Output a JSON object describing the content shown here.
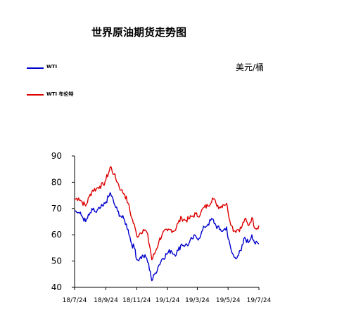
{
  "chart_data": {
    "type": "line",
    "title": "世界原油期货走势图",
    "unit_label": "美元/桶",
    "xlabel": "",
    "ylabel": "",
    "ylim": [
      40,
      90
    ],
    "yticks": [
      40,
      50,
      60,
      70,
      80,
      90
    ],
    "x_tick_labels": [
      "18/7/24",
      "18/9/24",
      "18/11/24",
      "19/1/24",
      "19/3/24",
      "19/5/24",
      "19/7/24"
    ],
    "x_tick_dates": [
      "2018-07-24",
      "2018-09-24",
      "2018-11-24",
      "2019-01-24",
      "2019-03-24",
      "2019-05-24",
      "2019-07-24"
    ],
    "legend_position": "top-left",
    "grid": false,
    "series": [
      {
        "name": "WTI",
        "color": "#0000cc",
        "points": [
          [
            "2018-07-24",
            69.0
          ],
          [
            "2018-08-01",
            68.5
          ],
          [
            "2018-08-08",
            67.0
          ],
          [
            "2018-08-15",
            65.0
          ],
          [
            "2018-08-22",
            67.5
          ],
          [
            "2018-08-29",
            69.5
          ],
          [
            "2018-09-05",
            68.5
          ],
          [
            "2018-09-12",
            70.0
          ],
          [
            "2018-09-19",
            71.0
          ],
          [
            "2018-09-24",
            72.5
          ],
          [
            "2018-10-01",
            75.0
          ],
          [
            "2018-10-03",
            76.0
          ],
          [
            "2018-10-10",
            72.0
          ],
          [
            "2018-10-17",
            69.0
          ],
          [
            "2018-10-24",
            67.0
          ],
          [
            "2018-10-31",
            65.5
          ],
          [
            "2018-11-07",
            62.0
          ],
          [
            "2018-11-14",
            56.5
          ],
          [
            "2018-11-21",
            54.5
          ],
          [
            "2018-11-24",
            50.5
          ],
          [
            "2018-11-30",
            51.0
          ],
          [
            "2018-12-07",
            52.0
          ],
          [
            "2018-12-14",
            51.0
          ],
          [
            "2018-12-21",
            46.0
          ],
          [
            "2018-12-24",
            42.5
          ],
          [
            "2018-12-31",
            45.5
          ],
          [
            "2019-01-07",
            48.5
          ],
          [
            "2019-01-14",
            51.0
          ],
          [
            "2019-01-24",
            53.0
          ],
          [
            "2019-01-31",
            54.0
          ],
          [
            "2019-02-07",
            52.5
          ],
          [
            "2019-02-14",
            54.0
          ],
          [
            "2019-02-21",
            56.5
          ],
          [
            "2019-02-28",
            56.0
          ],
          [
            "2019-03-07",
            56.5
          ],
          [
            "2019-03-14",
            58.5
          ],
          [
            "2019-03-21",
            59.5
          ],
          [
            "2019-03-24",
            58.5
          ],
          [
            "2019-03-31",
            60.0
          ],
          [
            "2019-04-07",
            63.0
          ],
          [
            "2019-04-14",
            64.0
          ],
          [
            "2019-04-23",
            66.0
          ],
          [
            "2019-04-30",
            63.5
          ],
          [
            "2019-05-07",
            62.0
          ],
          [
            "2019-05-14",
            61.5
          ],
          [
            "2019-05-21",
            63.0
          ],
          [
            "2019-05-24",
            58.5
          ],
          [
            "2019-05-31",
            53.5
          ],
          [
            "2019-06-05",
            51.5
          ],
          [
            "2019-06-12",
            52.0
          ],
          [
            "2019-06-19",
            54.0
          ],
          [
            "2019-06-26",
            59.0
          ],
          [
            "2019-07-03",
            57.0
          ],
          [
            "2019-07-10",
            60.0
          ],
          [
            "2019-07-17",
            56.5
          ],
          [
            "2019-07-24",
            56.5
          ]
        ]
      },
      {
        "name": "WTI 布伦特",
        "color": "#dd0000",
        "points": [
          [
            "2018-07-24",
            73.5
          ],
          [
            "2018-08-01",
            74.0
          ],
          [
            "2018-08-08",
            72.5
          ],
          [
            "2018-08-15",
            71.0
          ],
          [
            "2018-08-22",
            74.5
          ],
          [
            "2018-08-29",
            77.0
          ],
          [
            "2018-09-05",
            77.5
          ],
          [
            "2018-09-12",
            78.5
          ],
          [
            "2018-09-19",
            79.0
          ],
          [
            "2018-09-24",
            81.0
          ],
          [
            "2018-10-01",
            84.5
          ],
          [
            "2018-10-03",
            86.0
          ],
          [
            "2018-10-10",
            83.0
          ],
          [
            "2018-10-17",
            80.0
          ],
          [
            "2018-10-24",
            77.0
          ],
          [
            "2018-10-31",
            75.5
          ],
          [
            "2018-11-07",
            72.0
          ],
          [
            "2018-11-14",
            66.5
          ],
          [
            "2018-11-21",
            62.5
          ],
          [
            "2018-11-24",
            59.5
          ],
          [
            "2018-11-30",
            60.5
          ],
          [
            "2018-12-07",
            62.0
          ],
          [
            "2018-12-14",
            61.0
          ],
          [
            "2018-12-21",
            54.5
          ],
          [
            "2018-12-24",
            50.5
          ],
          [
            "2018-12-31",
            53.5
          ],
          [
            "2019-01-07",
            57.5
          ],
          [
            "2019-01-14",
            60.5
          ],
          [
            "2019-01-24",
            61.5
          ],
          [
            "2019-01-31",
            62.0
          ],
          [
            "2019-02-07",
            61.5
          ],
          [
            "2019-02-14",
            64.5
          ],
          [
            "2019-02-21",
            66.5
          ],
          [
            "2019-02-28",
            65.5
          ],
          [
            "2019-03-07",
            66.0
          ],
          [
            "2019-03-14",
            67.0
          ],
          [
            "2019-03-21",
            68.0
          ],
          [
            "2019-03-24",
            67.0
          ],
          [
            "2019-03-31",
            68.5
          ],
          [
            "2019-04-07",
            70.5
          ],
          [
            "2019-04-14",
            71.0
          ],
          [
            "2019-04-23",
            74.0
          ],
          [
            "2019-04-30",
            72.0
          ],
          [
            "2019-05-07",
            70.5
          ],
          [
            "2019-05-14",
            71.5
          ],
          [
            "2019-05-21",
            72.0
          ],
          [
            "2019-05-24",
            68.5
          ],
          [
            "2019-05-31",
            63.5
          ],
          [
            "2019-06-05",
            61.5
          ],
          [
            "2019-06-12",
            62.0
          ],
          [
            "2019-06-19",
            62.5
          ],
          [
            "2019-06-26",
            66.0
          ],
          [
            "2019-07-03",
            63.5
          ],
          [
            "2019-07-10",
            66.5
          ],
          [
            "2019-07-17",
            62.5
          ],
          [
            "2019-07-24",
            63.5
          ]
        ]
      }
    ]
  }
}
